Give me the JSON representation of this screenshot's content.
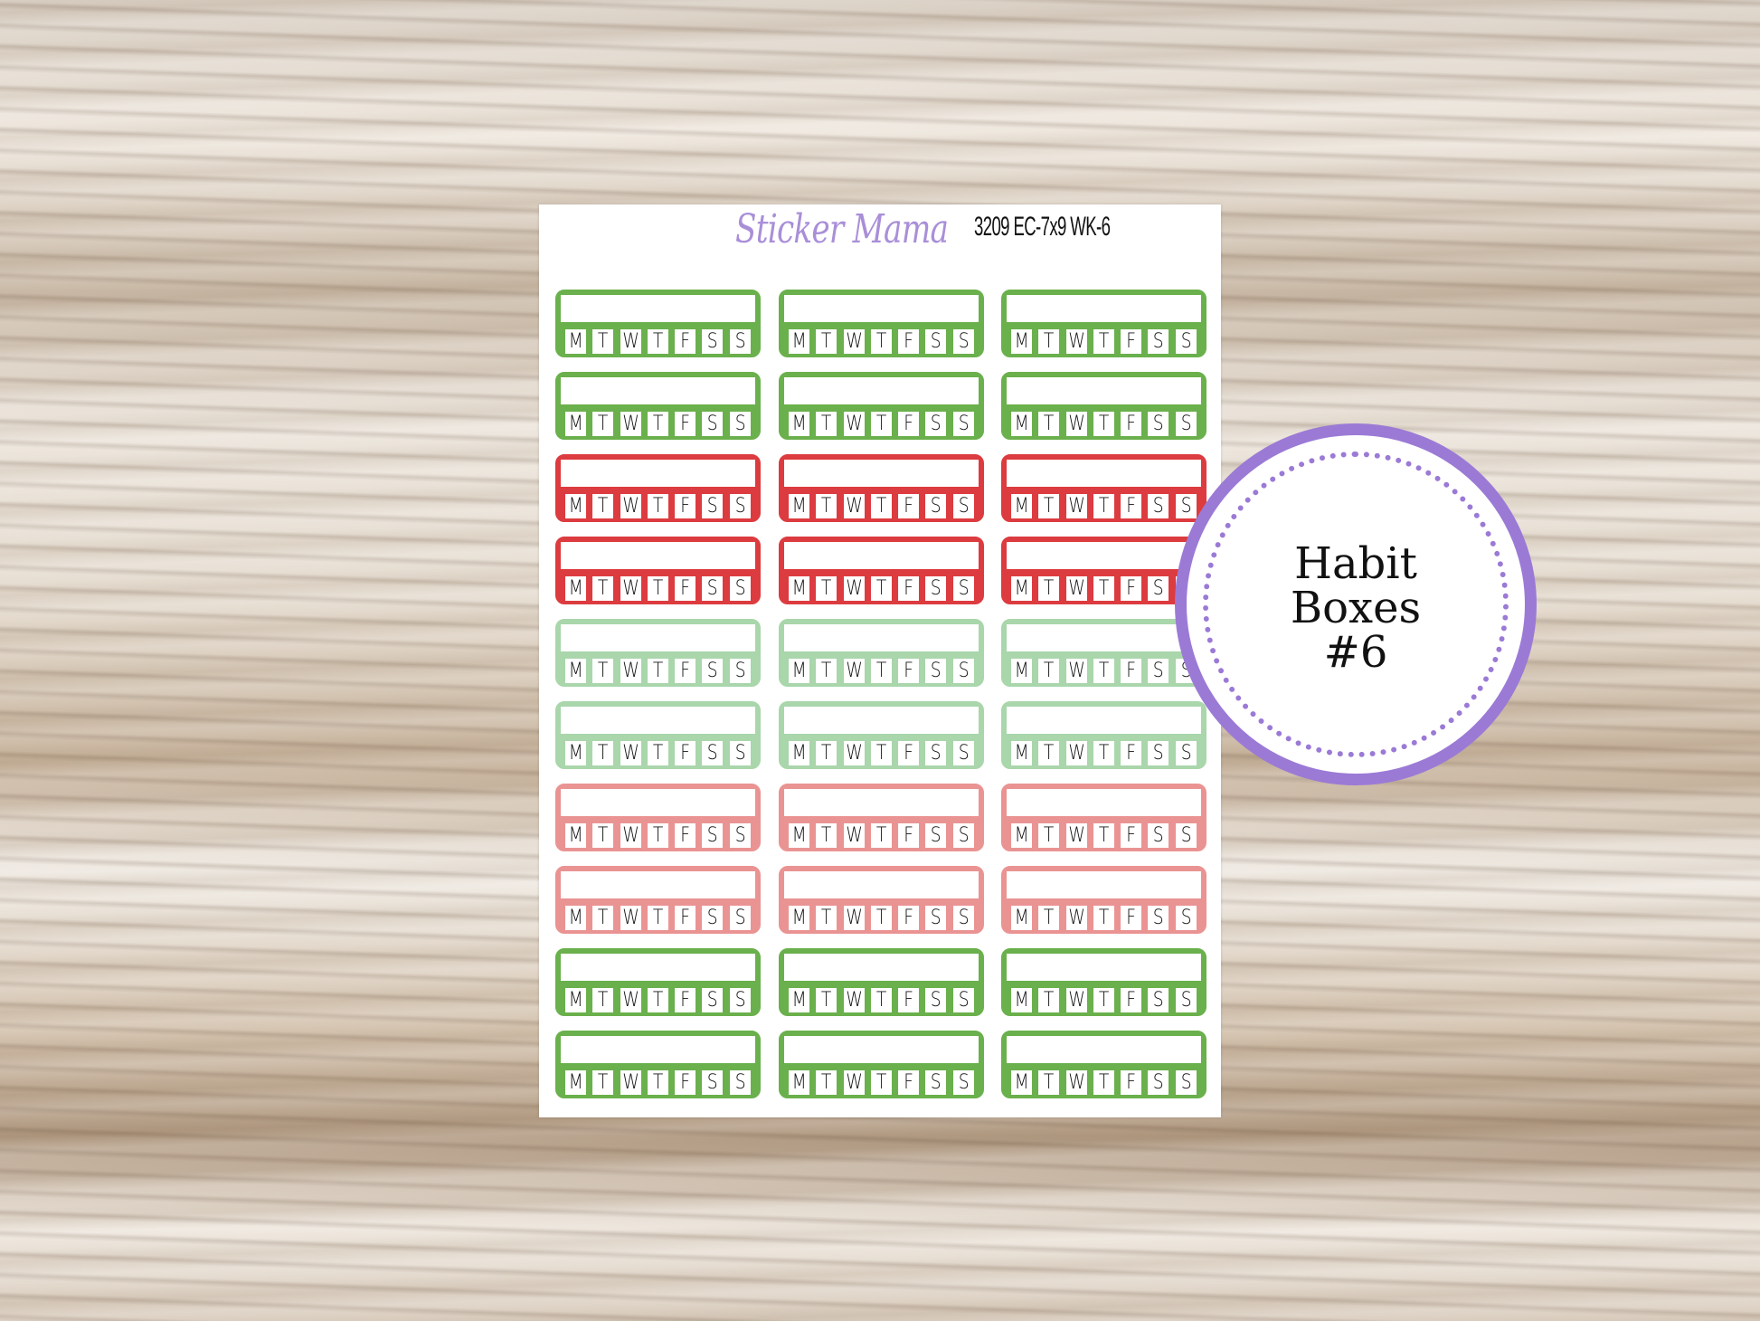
{
  "sheet": {
    "brand": "Sticker Mama",
    "code": "3209 EC-7x9 WK-6",
    "days": [
      "M",
      "T",
      "W",
      "T",
      "F",
      "S",
      "S"
    ],
    "columns": 3,
    "row_colors": [
      "#6ab04c",
      "#6ab04c",
      "#dc3b3f",
      "#dc3b3f",
      "#a9d6ab",
      "#a9d6ab",
      "#ea9393",
      "#ea9393",
      "#6ab04c",
      "#6ab04c"
    ]
  },
  "badge": {
    "lines": [
      "Habit",
      "Boxes",
      "#6"
    ],
    "color": "#9b7ad6"
  }
}
